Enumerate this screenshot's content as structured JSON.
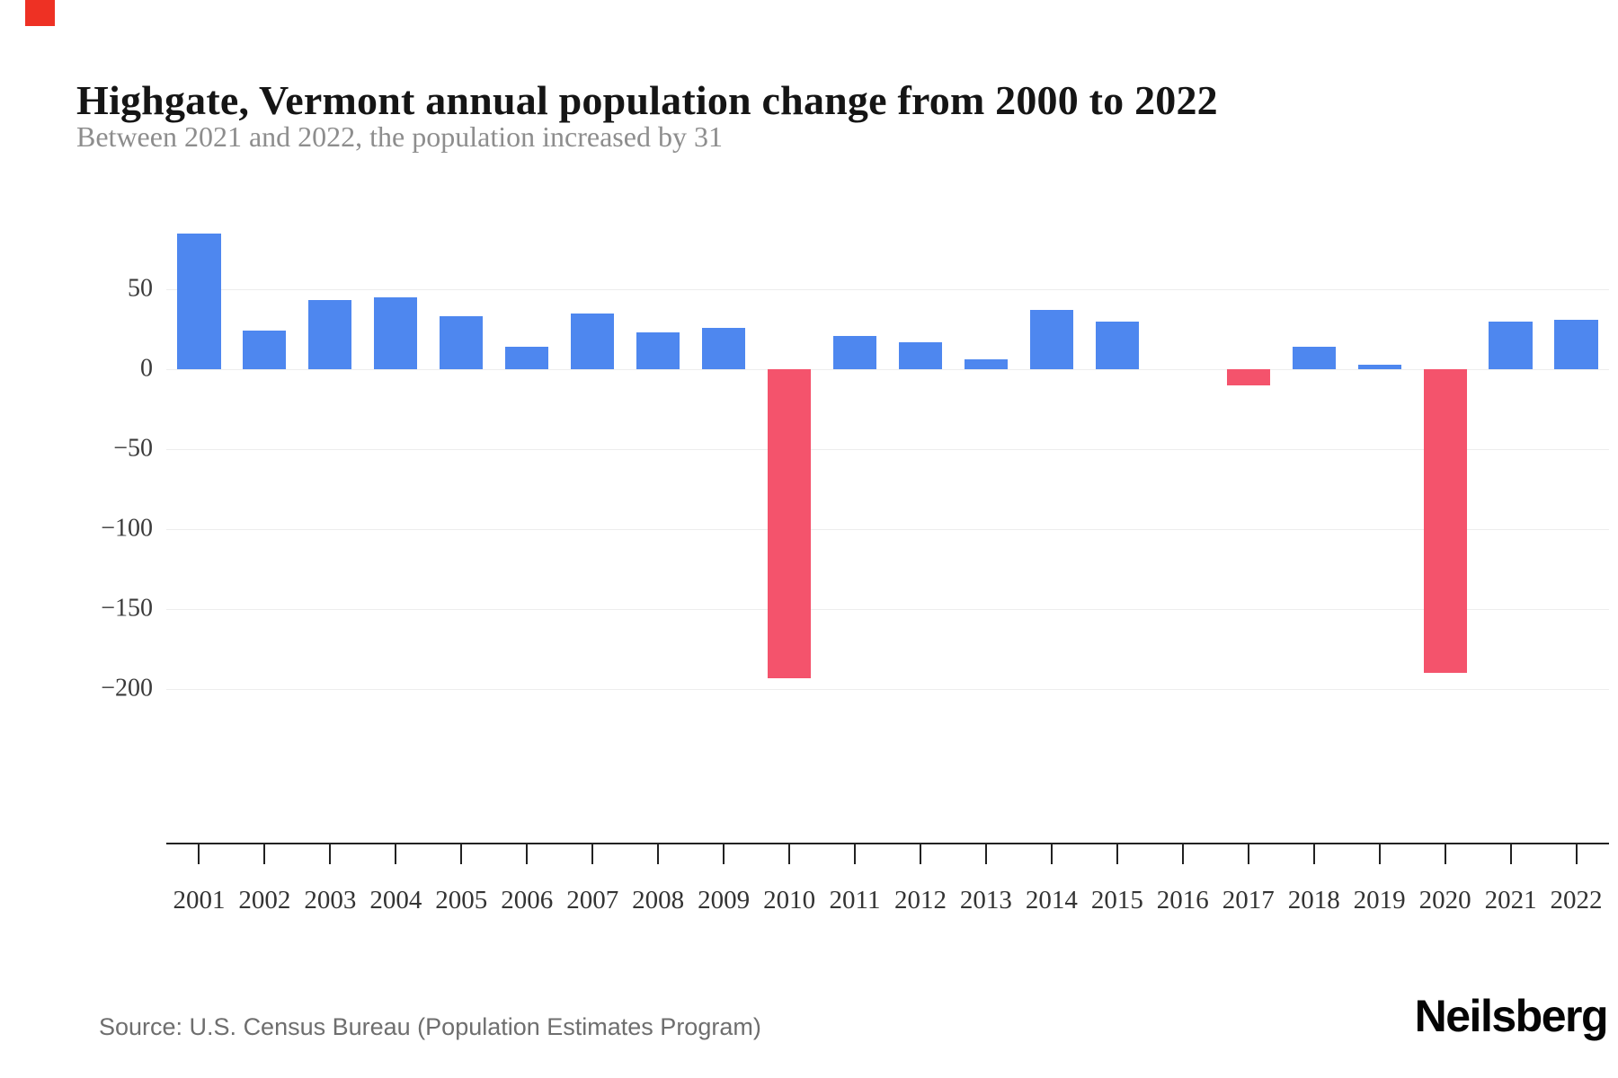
{
  "brand": {
    "corner_square_color": "#ee3124",
    "logo_text": "Neilsberg"
  },
  "header": {
    "title": "Highgate, Vermont annual population change from 2000 to 2022",
    "subtitle": "Between 2021 and 2022, the population increased by 31"
  },
  "footer": {
    "source": "Source: U.S. Census Bureau (Population Estimates Program)"
  },
  "chart_data": {
    "type": "bar",
    "title": "Highgate, Vermont annual population change from 2000 to 2022",
    "subtitle": "Between 2021 and 2022, the population increased by 31",
    "categories": [
      "2001",
      "2002",
      "2003",
      "2004",
      "2005",
      "2006",
      "2007",
      "2008",
      "2009",
      "2010",
      "2011",
      "2012",
      "2013",
      "2014",
      "2015",
      "2016",
      "2017",
      "2018",
      "2019",
      "2020",
      "2021",
      "2022"
    ],
    "values": [
      85,
      24,
      43,
      45,
      33,
      14,
      35,
      23,
      26,
      -193,
      21,
      17,
      6,
      37,
      30,
      0,
      -10,
      14,
      3,
      -190,
      30,
      31
    ],
    "xlabel": "",
    "ylabel": "",
    "yticks": [
      50,
      0,
      -50,
      -100,
      -150,
      -200
    ],
    "ylim": [
      -296,
      100
    ],
    "grid": true,
    "legend": false,
    "positive_color": "#4e87ef",
    "negative_color": "#f4536c",
    "gridline_color": "#ededed",
    "axis_color": "#222222"
  }
}
